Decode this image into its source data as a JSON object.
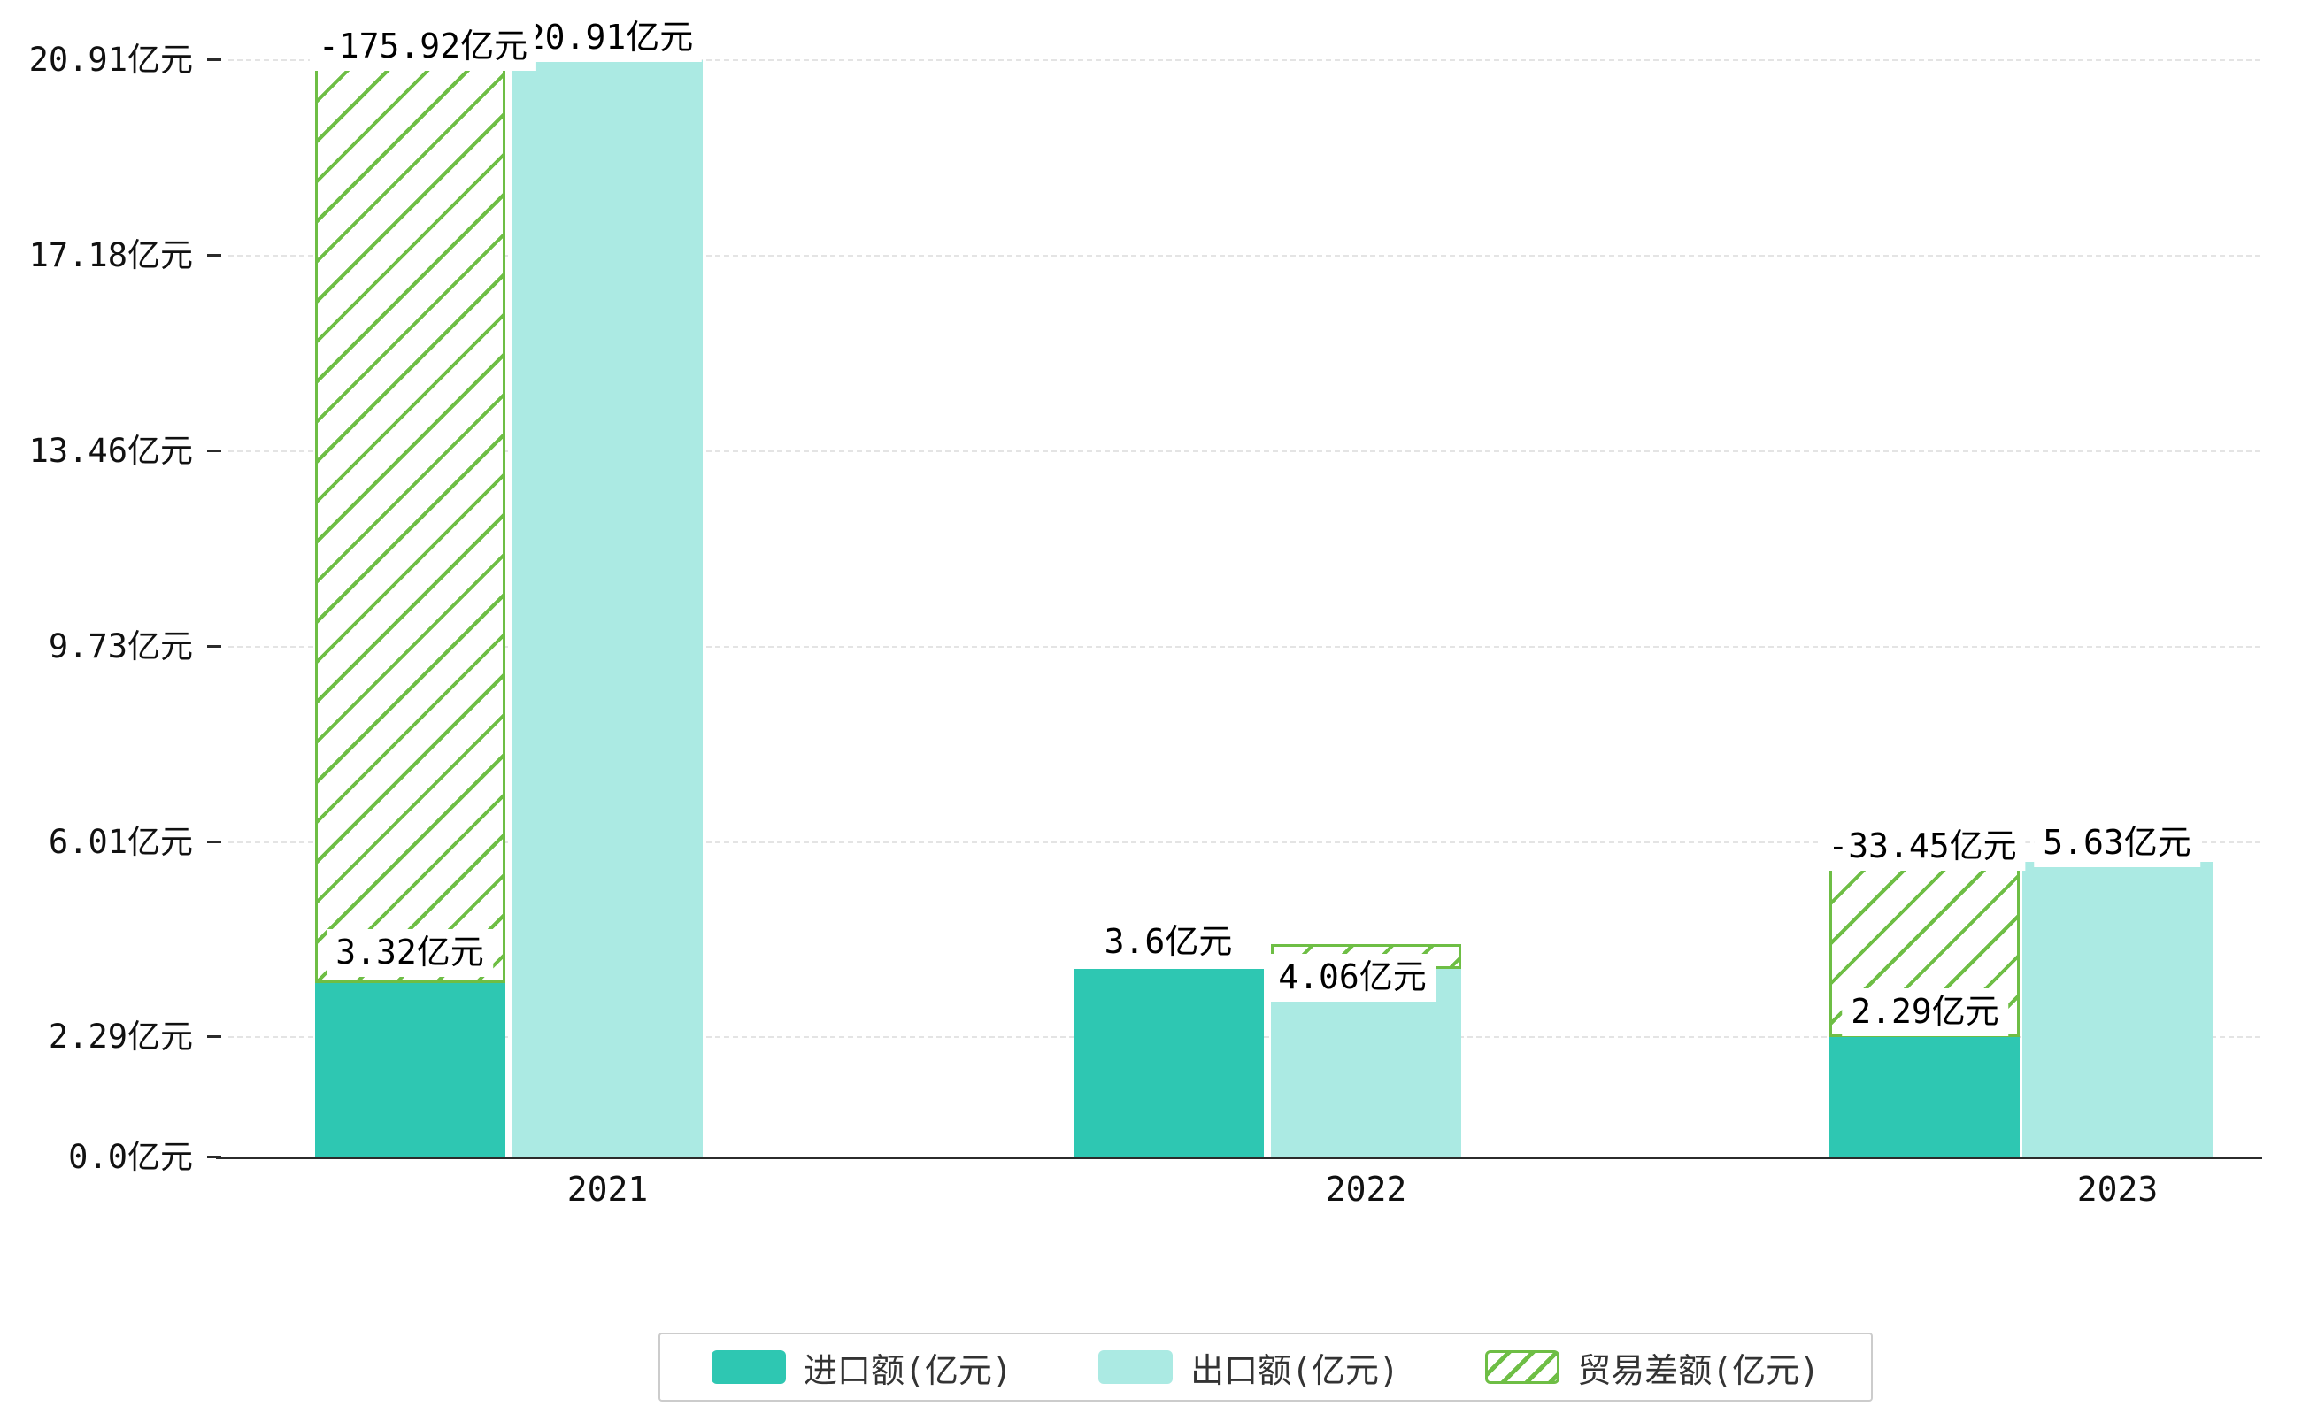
{
  "colors": {
    "import": "#2EC7B2",
    "export": "#ABEAE3",
    "diff": "#6EBE45",
    "grid": "#E4E4E4",
    "axis": "#2B2B2B"
  },
  "chart_data": {
    "type": "bar",
    "title": "",
    "categories": [
      "2021",
      "2022",
      "2023"
    ],
    "series": [
      {
        "name": "进口额(亿元)",
        "type": "bar",
        "color": "#2EC7B2",
        "values": [
          3.32,
          3.6,
          2.29
        ]
      },
      {
        "name": "出口额(亿元)",
        "type": "bar",
        "color": "#ABEAE3",
        "values": [
          20.91,
          4.06,
          5.63
        ]
      },
      {
        "name": "贸易差额(亿元)",
        "type": "bar",
        "style": "hatched",
        "color": "#6EBE45",
        "values": [
          -175.92,
          null,
          -33.45
        ],
        "spans": [
          {
            "from": 3.32,
            "to": 20.91
          },
          {
            "from": 3.6,
            "to": 4.06
          },
          {
            "from": 2.29,
            "to": 5.63
          }
        ]
      }
    ],
    "y_ticks": [
      {
        "value": 0,
        "label": "0.0亿元"
      },
      {
        "value": 2.29,
        "label": "2.29亿元"
      },
      {
        "value": 6.01,
        "label": "6.01亿元"
      },
      {
        "value": 9.73,
        "label": "9.73亿元"
      },
      {
        "value": 13.46,
        "label": "13.46亿元"
      },
      {
        "value": 17.18,
        "label": "17.18亿元"
      },
      {
        "value": 20.91,
        "label": "20.91亿元"
      }
    ],
    "ylim": [
      0,
      20.91
    ],
    "grid": {
      "horizontal": true,
      "style": "dashed"
    },
    "legend": {
      "position": "bottom",
      "items": [
        "进口额(亿元)",
        "出口额(亿元)",
        "贸易差额(亿元)"
      ]
    },
    "data_labels": [
      {
        "id": "label-2021-export",
        "text": "20.91亿元"
      },
      {
        "id": "label-2021-diff",
        "text": "-175.92亿元"
      },
      {
        "id": "label-2021-import",
        "text": "3.32亿元"
      },
      {
        "id": "label-2022-import",
        "text": "3.6亿元"
      },
      {
        "id": "label-2022-export",
        "text": "4.06亿元"
      },
      {
        "id": "label-2023-diff",
        "text": "-33.45亿元"
      },
      {
        "id": "label-2023-export",
        "text": "5.63亿元"
      },
      {
        "id": "label-2023-import",
        "text": "2.29亿元"
      }
    ]
  }
}
